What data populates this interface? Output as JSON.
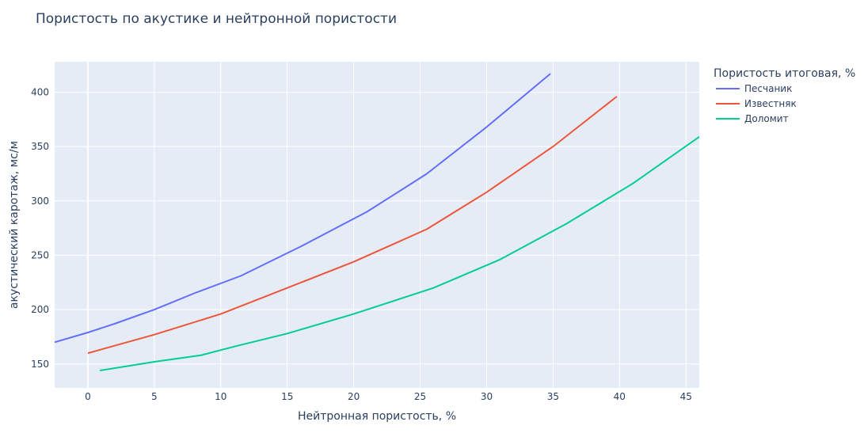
{
  "chart_data": {
    "type": "line",
    "title": "Пористость по акустике и нейтронной пористости",
    "xlabel": "Нейтронная пористость, %",
    "ylabel": "акустический каротаж, мс/м",
    "xlim": [
      -2.5,
      46
    ],
    "ylim": [
      128,
      428
    ],
    "x_ticks": [
      0,
      5,
      10,
      15,
      20,
      25,
      30,
      35,
      40,
      45
    ],
    "y_ticks": [
      150,
      200,
      250,
      300,
      350,
      400
    ],
    "grid": true,
    "legend_title": "Пористость итоговая, %",
    "legend_position": "right",
    "series": [
      {
        "name": "Песчаник",
        "color": "#636efa",
        "x": [
          -2.5,
          0,
          2,
          5,
          8,
          11.5,
          16,
          21,
          25.5,
          30,
          34.8
        ],
        "y": [
          170,
          179,
          187,
          200,
          215,
          231,
          258,
          290,
          325,
          368,
          417
        ]
      },
      {
        "name": "Известняк",
        "color": "#ef553b",
        "x": [
          0,
          5,
          10,
          15,
          20,
          25.5,
          30,
          35,
          39.8
        ],
        "y": [
          160,
          177,
          196,
          220,
          244,
          274,
          308,
          350,
          396
        ]
      },
      {
        "name": "Доломит",
        "color": "#00cc96",
        "x": [
          0.9,
          5,
          8.5,
          11,
          15,
          20,
          26,
          31,
          36,
          41,
          46
        ],
        "y": [
          144,
          152,
          158,
          166,
          178,
          196,
          220,
          246,
          279,
          316,
          359
        ]
      }
    ]
  }
}
